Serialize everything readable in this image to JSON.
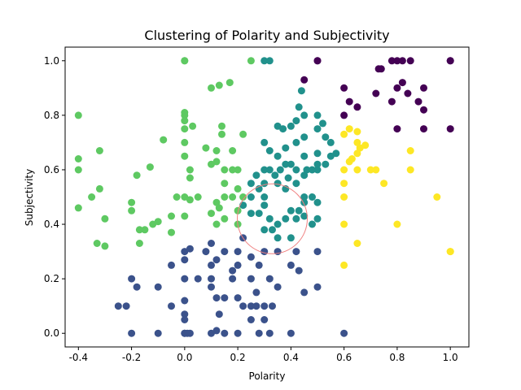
{
  "chart_data": {
    "type": "scatter",
    "title": "Clustering of Polarity and Subjectivity",
    "xlabel": "Polarity",
    "ylabel": "Subjectivity",
    "xlim": [
      -0.45,
      1.07
    ],
    "ylim": [
      -0.05,
      1.05
    ],
    "xticks": [
      "-0.4",
      "-0.2",
      "0.0",
      "0.2",
      "0.4",
      "0.6",
      "0.8",
      "1.0"
    ],
    "yticks": [
      "0.0",
      "0.2",
      "0.4",
      "0.6",
      "0.8",
      "1.0"
    ],
    "grid": false,
    "legend": "none",
    "colors": {
      "cluster_0": "#440154",
      "cluster_1": "#3b528b",
      "cluster_2": "#21918c",
      "cluster_3": "#5ec962",
      "cluster_4": "#fde725",
      "centroid_ring": "#f08080"
    },
    "centroid_ring": {
      "x": 0.33,
      "y": 0.42
    },
    "series": [
      {
        "cluster": 0,
        "points": [
          [
            0.5,
            1.0
          ],
          [
            0.5,
            1.0
          ],
          [
            0.8,
            1.0
          ],
          [
            0.82,
            1.0
          ],
          [
            0.78,
            1.0
          ],
          [
            0.85,
            1.0
          ],
          [
            1.0,
            1.0
          ],
          [
            1.0,
            1.0
          ],
          [
            0.73,
            0.97
          ],
          [
            0.74,
            0.97
          ],
          [
            0.6,
            0.9
          ],
          [
            0.8,
            0.9
          ],
          [
            0.82,
            0.92
          ],
          [
            0.84,
            0.88
          ],
          [
            0.9,
            0.9
          ],
          [
            0.72,
            0.88
          ],
          [
            0.78,
            0.85
          ],
          [
            0.62,
            0.85
          ],
          [
            0.65,
            0.83
          ],
          [
            0.6,
            0.8
          ],
          [
            0.88,
            0.85
          ],
          [
            0.9,
            0.82
          ],
          [
            0.8,
            0.75
          ],
          [
            0.9,
            0.75
          ],
          [
            1.0,
            0.75
          ],
          [
            0.45,
            0.93
          ]
        ]
      },
      {
        "cluster": 1,
        "points": [
          [
            0.0,
            0.3
          ],
          [
            0.0,
            0.27
          ],
          [
            0.02,
            0.31
          ],
          [
            -0.05,
            0.25
          ],
          [
            -0.2,
            0.2
          ],
          [
            -0.18,
            0.17
          ],
          [
            0.1,
            0.2
          ],
          [
            0.0,
            0.2
          ],
          [
            0.05,
            0.2
          ],
          [
            0.1,
            0.17
          ],
          [
            -0.1,
            0.17
          ],
          [
            -0.05,
            0.1
          ],
          [
            0.0,
            0.12
          ],
          [
            0.0,
            0.07
          ],
          [
            -0.25,
            0.1
          ],
          [
            -0.22,
            0.1
          ],
          [
            0.0,
            0.0
          ],
          [
            0.0,
            0.0
          ],
          [
            0.01,
            0.0
          ],
          [
            0.02,
            0.0
          ],
          [
            -0.2,
            0.0
          ],
          [
            -0.1,
            0.0
          ],
          [
            0.1,
            0.0
          ],
          [
            0.12,
            0.01
          ],
          [
            0.15,
            0.0
          ],
          [
            0.2,
            0.0
          ],
          [
            0.28,
            0.0
          ],
          [
            0.32,
            0.0
          ],
          [
            0.4,
            0.0
          ],
          [
            0.6,
            0.0
          ],
          [
            0.0,
            0.05
          ],
          [
            0.1,
            0.25
          ],
          [
            0.15,
            0.3
          ],
          [
            0.18,
            0.2
          ],
          [
            0.2,
            0.3
          ],
          [
            0.22,
            0.35
          ],
          [
            0.25,
            0.28
          ],
          [
            0.25,
            0.2
          ],
          [
            0.27,
            0.15
          ],
          [
            0.28,
            0.25
          ],
          [
            0.3,
            0.3
          ],
          [
            0.32,
            0.2
          ],
          [
            0.35,
            0.17
          ],
          [
            0.4,
            0.25
          ],
          [
            0.42,
            0.3
          ],
          [
            0.43,
            0.23
          ],
          [
            0.5,
            0.3
          ],
          [
            0.5,
            0.17
          ],
          [
            0.45,
            0.15
          ],
          [
            0.25,
            0.1
          ],
          [
            0.27,
            0.1
          ],
          [
            0.3,
            0.1
          ],
          [
            0.33,
            0.1
          ],
          [
            0.2,
            0.13
          ],
          [
            0.22,
            0.1
          ],
          [
            0.15,
            0.13
          ],
          [
            0.12,
            0.13
          ],
          [
            0.13,
            0.07
          ],
          [
            0.25,
            0.05
          ],
          [
            0.3,
            0.05
          ],
          [
            0.1,
            0.33
          ],
          [
            0.08,
            0.3
          ],
          [
            0.18,
            0.23
          ],
          [
            0.12,
            0.27
          ],
          [
            0.35,
            0.3
          ],
          [
            0.2,
            0.25
          ]
        ]
      },
      {
        "cluster": 2,
        "points": [
          [
            0.3,
            0.5
          ],
          [
            0.28,
            0.44
          ],
          [
            0.25,
            0.44
          ],
          [
            0.22,
            0.47
          ],
          [
            0.3,
            0.47
          ],
          [
            0.32,
            0.42
          ],
          [
            0.35,
            0.4
          ],
          [
            0.38,
            0.42
          ],
          [
            0.4,
            0.45
          ],
          [
            0.33,
            0.38
          ],
          [
            0.3,
            0.38
          ],
          [
            0.35,
            0.35
          ],
          [
            0.4,
            0.35
          ],
          [
            0.45,
            0.43
          ],
          [
            0.45,
            0.5
          ],
          [
            0.42,
            0.55
          ],
          [
            0.38,
            0.53
          ],
          [
            0.35,
            0.55
          ],
          [
            0.32,
            0.6
          ],
          [
            0.3,
            0.55
          ],
          [
            0.28,
            0.53
          ],
          [
            0.25,
            0.55
          ],
          [
            0.27,
            0.58
          ],
          [
            0.3,
            0.6
          ],
          [
            0.35,
            0.65
          ],
          [
            0.38,
            0.68
          ],
          [
            0.42,
            0.7
          ],
          [
            0.45,
            0.72
          ],
          [
            0.5,
            0.75
          ],
          [
            0.52,
            0.77
          ],
          [
            0.5,
            0.8
          ],
          [
            0.53,
            0.72
          ],
          [
            0.55,
            0.7
          ],
          [
            0.5,
            0.66
          ],
          [
            0.45,
            0.65
          ],
          [
            0.4,
            0.62
          ],
          [
            0.42,
            0.6
          ],
          [
            0.46,
            0.6
          ],
          [
            0.48,
            0.6
          ],
          [
            0.5,
            0.6
          ],
          [
            0.45,
            0.58
          ],
          [
            0.55,
            0.65
          ],
          [
            0.53,
            0.62
          ],
          [
            0.57,
            0.66
          ],
          [
            0.4,
            0.76
          ],
          [
            0.42,
            0.78
          ],
          [
            0.45,
            0.8
          ],
          [
            0.43,
            0.83
          ],
          [
            0.44,
            0.89
          ],
          [
            0.35,
            0.76
          ],
          [
            0.37,
            0.75
          ],
          [
            0.3,
            0.7
          ],
          [
            0.32,
            0.67
          ],
          [
            0.38,
            0.62
          ],
          [
            0.36,
            0.6
          ],
          [
            0.34,
            0.58
          ],
          [
            0.39,
            0.57
          ],
          [
            0.45,
            0.48
          ],
          [
            0.48,
            0.5
          ],
          [
            0.5,
            0.48
          ],
          [
            0.5,
            0.42
          ],
          [
            0.48,
            0.4
          ],
          [
            0.42,
            0.42
          ],
          [
            0.43,
            0.45
          ],
          [
            0.3,
            1.0
          ],
          [
            0.32,
            1.0
          ],
          [
            0.5,
            0.62
          ],
          [
            0.25,
            0.5
          ]
        ]
      },
      {
        "cluster": 3,
        "points": [
          [
            0.0,
            1.0
          ],
          [
            0.0,
            1.0
          ],
          [
            0.25,
            1.0
          ],
          [
            0.17,
            0.92
          ],
          [
            0.13,
            0.91
          ],
          [
            0.1,
            0.9
          ],
          [
            0.0,
            0.81
          ],
          [
            0.0,
            0.8
          ],
          [
            0.0,
            0.78
          ],
          [
            0.03,
            0.76
          ],
          [
            -0.4,
            0.8
          ],
          [
            0.0,
            0.75
          ],
          [
            0.14,
            0.76
          ],
          [
            0.14,
            0.73
          ],
          [
            0.22,
            0.73
          ],
          [
            -0.08,
            0.71
          ],
          [
            0.0,
            0.7
          ],
          [
            0.08,
            0.68
          ],
          [
            0.12,
            0.67
          ],
          [
            0.18,
            0.67
          ],
          [
            -0.32,
            0.67
          ],
          [
            0.0,
            0.65
          ],
          [
            -0.4,
            0.64
          ],
          [
            -0.13,
            0.61
          ],
          [
            0.1,
            0.62
          ],
          [
            0.12,
            0.63
          ],
          [
            0.15,
            0.6
          ],
          [
            0.18,
            0.6
          ],
          [
            0.2,
            0.6
          ],
          [
            0.02,
            0.6
          ],
          [
            -0.4,
            0.6
          ],
          [
            -0.18,
            0.58
          ],
          [
            0.02,
            0.57
          ],
          [
            0.15,
            0.55
          ],
          [
            0.2,
            0.53
          ],
          [
            0.22,
            0.5
          ],
          [
            0.18,
            0.5
          ],
          [
            0.15,
            0.5
          ],
          [
            0.12,
            0.48
          ],
          [
            0.05,
            0.5
          ],
          [
            0.0,
            0.5
          ],
          [
            0.02,
            0.49
          ],
          [
            -0.03,
            0.5
          ],
          [
            -0.32,
            0.53
          ],
          [
            -0.35,
            0.5
          ],
          [
            -0.2,
            0.48
          ],
          [
            -0.4,
            0.46
          ],
          [
            -0.3,
            0.42
          ],
          [
            -0.2,
            0.45
          ],
          [
            -0.05,
            0.43
          ],
          [
            0.0,
            0.43
          ],
          [
            -0.1,
            0.41
          ],
          [
            -0.12,
            0.4
          ],
          [
            -0.15,
            0.38
          ],
          [
            -0.17,
            0.38
          ],
          [
            0.1,
            0.44
          ],
          [
            0.15,
            0.42
          ],
          [
            0.12,
            0.4
          ],
          [
            -0.05,
            0.37
          ],
          [
            -0.33,
            0.33
          ],
          [
            -0.3,
            0.32
          ],
          [
            -0.17,
            0.33
          ],
          [
            0.2,
            0.4
          ],
          [
            0.13,
            0.46
          ],
          [
            0.2,
            0.45
          ]
        ]
      },
      {
        "cluster": 4,
        "points": [
          [
            0.6,
            0.73
          ],
          [
            0.62,
            0.75
          ],
          [
            0.65,
            0.74
          ],
          [
            0.65,
            0.7
          ],
          [
            0.66,
            0.68
          ],
          [
            0.65,
            0.66
          ],
          [
            0.63,
            0.64
          ],
          [
            0.62,
            0.63
          ],
          [
            0.6,
            0.6
          ],
          [
            0.65,
            0.6
          ],
          [
            0.7,
            0.6
          ],
          [
            0.72,
            0.6
          ],
          [
            0.85,
            0.67
          ],
          [
            0.85,
            0.6
          ],
          [
            0.6,
            0.55
          ],
          [
            0.6,
            0.5
          ],
          [
            0.75,
            0.55
          ],
          [
            0.95,
            0.5
          ],
          [
            0.6,
            0.4
          ],
          [
            0.8,
            0.4
          ],
          [
            0.65,
            0.33
          ],
          [
            0.6,
            0.25
          ],
          [
            1.0,
            0.3
          ],
          [
            1.0,
            0.3
          ],
          [
            0.68,
            0.69
          ]
        ]
      }
    ]
  }
}
